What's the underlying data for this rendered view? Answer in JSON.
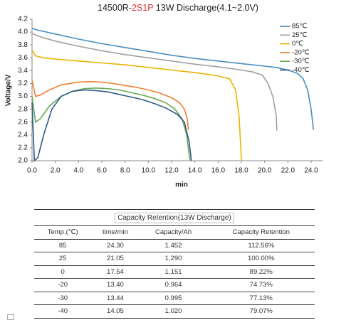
{
  "chart_data": {
    "type": "line",
    "title": [
      {
        "text": "14500R-"
      },
      {
        "text": "2S1P",
        "color": "#e03030"
      },
      {
        "text": " 13W Discharge(4.1~2.0V)"
      }
    ],
    "xlabel": "min",
    "ylabel": "Voltage/V",
    "xlim": [
      0,
      25
    ],
    "ylim": [
      2.0,
      4.2
    ],
    "xticks": [
      {
        "value": 0,
        "label": "0.0"
      },
      {
        "value": 2,
        "label": "2.0"
      },
      {
        "value": 4,
        "label": "4.0"
      },
      {
        "value": 6,
        "label": "6.0"
      },
      {
        "value": 8,
        "label": "8.0"
      },
      {
        "value": 10,
        "label": "10.0"
      },
      {
        "value": 12,
        "label": "12.0"
      },
      {
        "value": 14,
        "label": "14.0"
      },
      {
        "value": 16,
        "label": "16.0"
      },
      {
        "value": 18,
        "label": "18.0"
      },
      {
        "value": 20,
        "label": "20.0"
      },
      {
        "value": 22,
        "label": "22.0"
      },
      {
        "value": 24,
        "label": "24.0"
      }
    ],
    "yticks": [
      {
        "value": 2,
        "label": "2.0"
      },
      2.2,
      2.4,
      2.6,
      2.8,
      {
        "value": 3,
        "label": "3.0"
      },
      3.2,
      3.4,
      3.6,
      3.8,
      {
        "value": 4,
        "label": "4.0"
      },
      4.2
    ],
    "legend": "upper right",
    "series": [
      {
        "name": "85℃",
        "color": "#4a8ec0",
        "x": [
          0,
          0.5,
          1,
          2,
          4,
          6,
          8,
          10,
          12,
          14,
          16,
          18,
          20,
          21,
          22,
          22.8,
          23.3,
          23.7,
          24.0,
          24.2
        ],
        "values": [
          4.06,
          4.03,
          4.01,
          3.97,
          3.89,
          3.82,
          3.76,
          3.7,
          3.64,
          3.59,
          3.55,
          3.51,
          3.47,
          3.45,
          3.41,
          3.36,
          3.28,
          3.1,
          2.8,
          2.48
        ]
      },
      {
        "name": "25℃",
        "color": "#a0a0a0",
        "x": [
          0,
          0.5,
          1,
          2,
          4,
          6,
          8,
          10,
          12,
          14,
          16,
          18,
          19,
          19.8,
          20.3,
          20.7,
          21.0,
          21.05
        ],
        "values": [
          3.98,
          3.94,
          3.91,
          3.86,
          3.78,
          3.71,
          3.65,
          3.6,
          3.55,
          3.5,
          3.46,
          3.41,
          3.38,
          3.33,
          3.2,
          3.0,
          2.7,
          2.47
        ]
      },
      {
        "name": "0℃",
        "color": "#e8b400",
        "x": [
          0,
          0.3,
          1,
          2,
          4,
          6,
          8,
          10,
          12,
          14,
          16,
          17,
          17.5,
          17.8,
          17.95,
          18.0
        ],
        "values": [
          3.72,
          3.63,
          3.6,
          3.58,
          3.55,
          3.52,
          3.49,
          3.45,
          3.41,
          3.37,
          3.32,
          3.27,
          3.1,
          2.7,
          2.2,
          2.0
        ]
      },
      {
        "name": "-20℃",
        "color": "#f08030",
        "x": [
          0,
          0.3,
          0.7,
          1.5,
          2.5,
          4,
          5,
          6,
          7,
          8,
          9,
          10,
          11,
          12,
          12.7,
          13.1,
          13.35,
          13.45
        ],
        "values": [
          3.25,
          3.0,
          3.02,
          3.1,
          3.18,
          3.22,
          3.23,
          3.22,
          3.2,
          3.17,
          3.14,
          3.1,
          3.05,
          2.98,
          2.9,
          2.8,
          2.65,
          2.48
        ]
      },
      {
        "name": "-30℃",
        "color": "#6aaa50",
        "x": [
          0,
          0.3,
          0.7,
          1.5,
          2.5,
          3.5,
          4.5,
          5.5,
          6.5,
          7.5,
          8.5,
          9.5,
          10.5,
          11.5,
          12.3,
          12.9,
          13.3,
          13.5,
          13.6
        ],
        "values": [
          3.0,
          2.6,
          2.65,
          2.85,
          3.0,
          3.08,
          3.12,
          3.13,
          3.12,
          3.1,
          3.06,
          3.02,
          2.97,
          2.9,
          2.8,
          2.65,
          2.4,
          2.1,
          2.0
        ]
      },
      {
        "name": "-40℃",
        "color": "#2f5a8a",
        "x": [
          0,
          0.2,
          0.5,
          1,
          1.7,
          2.5,
          3.5,
          4.5,
          5.5,
          6.5,
          7.5,
          8.5,
          9.5,
          10.5,
          11.5,
          12.5,
          13.1,
          13.5,
          13.7
        ],
        "values": [
          2.9,
          2.0,
          2.05,
          2.4,
          2.8,
          3.0,
          3.08,
          3.1,
          3.09,
          3.07,
          3.03,
          2.99,
          2.95,
          2.89,
          2.82,
          2.72,
          2.6,
          2.3,
          2.0
        ]
      }
    ]
  },
  "table": {
    "caption": "Capacity Retention(13W Discharge)",
    "header": [
      "Temp.(℃)",
      "time/min",
      "Capacity/Ah",
      "Capacity Retention"
    ],
    "rows": [
      [
        "85",
        "24.30",
        "1.452",
        "112.56%"
      ],
      [
        "25",
        "21.05",
        "1.290",
        "100.00%"
      ],
      [
        "0",
        "17.54",
        "1.151",
        "89.22%"
      ],
      [
        "-20",
        "13.40",
        "0.964",
        "74.73%"
      ],
      [
        "-30",
        "13.44",
        "0.995",
        "77.13%"
      ],
      [
        "-40",
        "14.05",
        "1.020",
        "79.07%"
      ]
    ]
  }
}
